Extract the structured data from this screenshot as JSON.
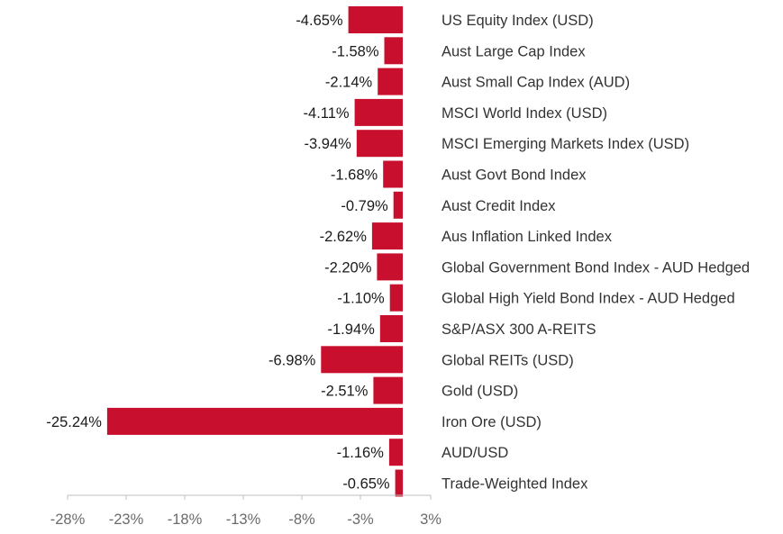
{
  "colors": {
    "bar": "#c8102e",
    "axis": "#bfbfbf",
    "tick_text": "#6b6b6b"
  },
  "chart_data": {
    "type": "bar",
    "orientation": "horizontal",
    "categories": [
      "US Equity Index (USD)",
      "Aust Large Cap Index",
      "Aust Small Cap Index (AUD)",
      "MSCI World Index (USD)",
      "MSCI Emerging Markets Index (USD)",
      "Aust Govt Bond Index",
      "Aust Credit Index",
      "Aus Inflation Linked Index",
      "Global Government Bond Index - AUD Hedged",
      "Global High Yield Bond Index - AUD Hedged",
      "S&P/ASX 300 A-REITS",
      "Global REITs (USD)",
      "Gold (USD)",
      "Iron Ore (USD)",
      "AUD/USD",
      "Trade-Weighted Index"
    ],
    "values": [
      -4.65,
      -1.58,
      -2.14,
      -4.11,
      -3.94,
      -1.68,
      -0.79,
      -2.62,
      -2.2,
      -1.1,
      -1.94,
      -6.98,
      -2.51,
      -25.24,
      -1.16,
      -0.65
    ],
    "value_labels": [
      "-4.65%",
      "-1.58%",
      "-2.14%",
      "-4.11%",
      "-3.94%",
      "-1.68%",
      "-0.79%",
      "-2.62%",
      "-2.20%",
      "-1.10%",
      "-1.94%",
      "-6.98%",
      "-2.51%",
      "-25.24%",
      "-1.16%",
      "-0.65%"
    ],
    "xlim": [
      -28,
      3
    ],
    "xticks": [
      -28,
      -23,
      -18,
      -13,
      -8,
      -3,
      3
    ],
    "xtick_labels": [
      "-28%",
      "-23%",
      "-18%",
      "-13%",
      "-8%",
      "-3%",
      "3%"
    ],
    "grid": false,
    "legend": "none"
  }
}
